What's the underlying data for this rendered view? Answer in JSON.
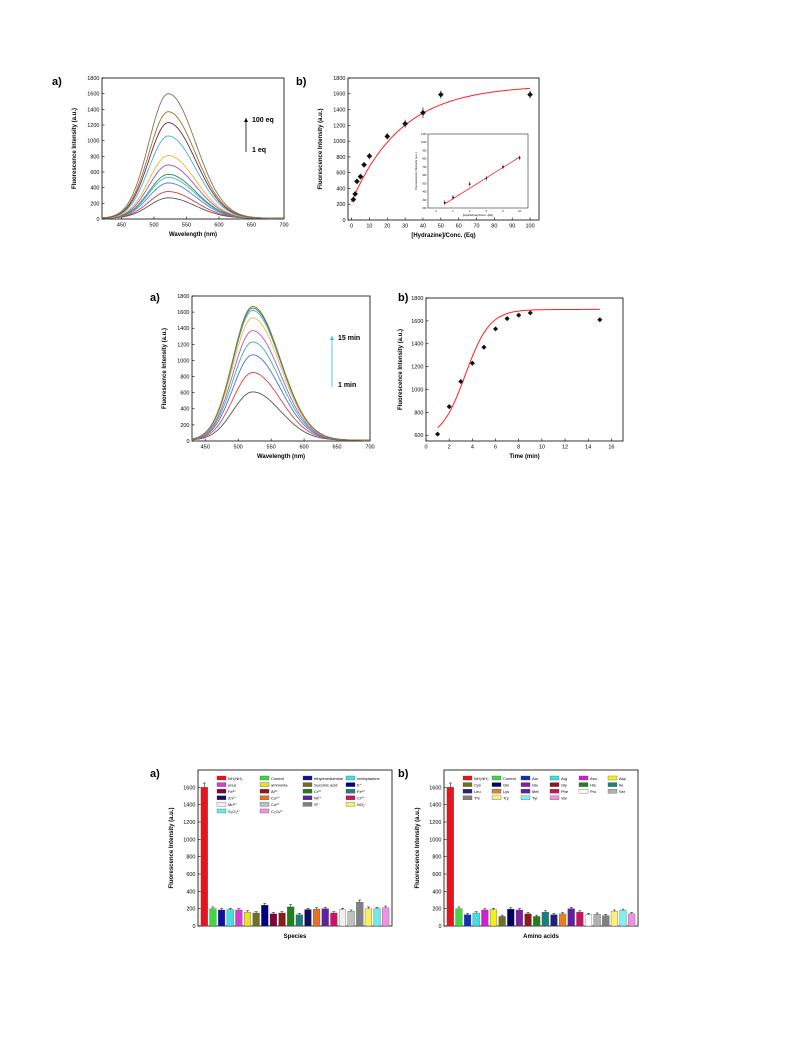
{
  "panels": {
    "fig1a": {
      "letter": "a)",
      "chart_data": {
        "type": "line",
        "xlabel": "Wavelength (nm)",
        "ylabel": "Fluorescence Intensity (a.u.)",
        "xlim": [
          420,
          700
        ],
        "ylim": [
          0,
          1800
        ],
        "xticks": [
          450,
          500,
          550,
          600,
          650,
          700
        ],
        "yticks": [
          0,
          200,
          400,
          600,
          800,
          1000,
          1200,
          1400,
          1600,
          1800
        ],
        "peak_x": 522,
        "series_peaks": [
          270,
          350,
          460,
          530,
          570,
          690,
          810,
          1060,
          1230,
          1370,
          1600
        ],
        "series_colors": [
          "#555555",
          "#d23b3b",
          "#5a7bd8",
          "#3fb8c8",
          "#2e8b57",
          "#a050c0",
          "#e8b830",
          "#40b0e0",
          "#7a1f4f",
          "#8b7a20",
          "#8a6d5a"
        ],
        "annotation_top": "100 eq",
        "annotation_bottom": "1 eq"
      }
    },
    "fig1b": {
      "letter": "b)",
      "chart_data": {
        "type": "scatter",
        "xlabel": "[Hydrazine]/Conc. (Eq)",
        "ylabel": "Fluorescence Intensity (a.u.)",
        "xlim": [
          -2,
          105
        ],
        "ylim": [
          0,
          1800
        ],
        "xticks": [
          0,
          10,
          20,
          30,
          40,
          50,
          60,
          70,
          80,
          90,
          100
        ],
        "yticks": [
          0,
          200,
          400,
          600,
          800,
          1000,
          1200,
          1400,
          1600,
          1800
        ],
        "x": [
          1,
          2,
          3,
          5,
          7,
          10,
          20,
          30,
          40,
          50,
          100
        ],
        "y": [
          260,
          330,
          490,
          550,
          700,
          810,
          1060,
          1220,
          1360,
          1590,
          1590
        ],
        "err": [
          20,
          25,
          30,
          30,
          35,
          40,
          40,
          50,
          70,
          50,
          50
        ],
        "fit_color": "#ff2020",
        "inset": {
          "xlabel": "[Hydrazine]/Conc. (Eq)",
          "ylabel": "Fluorescence Intensity (a.u.)",
          "xlim": [
            -1,
            11
          ],
          "ylim": [
            200,
            1100
          ],
          "xticks": [
            0,
            2,
            4,
            6,
            8,
            10
          ],
          "yticks": [
            200,
            300,
            400,
            500,
            600,
            700,
            800,
            900,
            1000,
            1100
          ],
          "x": [
            1,
            2,
            4,
            6,
            8,
            10
          ],
          "y": [
            265,
            330,
            490,
            560,
            700,
            810
          ]
        }
      }
    },
    "fig2a": {
      "letter": "a)",
      "chart_data": {
        "type": "line",
        "xlabel": "Wavelength (nm)",
        "ylabel": "Fluorescence Intensity (a.u.)",
        "xlim": [
          430,
          700
        ],
        "ylim": [
          0,
          1800
        ],
        "xticks": [
          450,
          500,
          550,
          600,
          650,
          700
        ],
        "yticks": [
          0,
          200,
          400,
          600,
          800,
          1000,
          1200,
          1400,
          1600,
          1800
        ],
        "peak_x": 522,
        "series_peaks": [
          610,
          850,
          1070,
          1230,
          1370,
          1530,
          1620,
          1650,
          1670
        ],
        "series_colors": [
          "#555555",
          "#e04040",
          "#4a6fd8",
          "#30b8a0",
          "#c050d0",
          "#e8c040",
          "#50a0e0",
          "#2e8b57",
          "#8b7a20"
        ],
        "annotation_top": "15 min",
        "annotation_bottom": "1 min"
      }
    },
    "fig2b": {
      "letter": "b)",
      "chart_data": {
        "type": "scatter",
        "xlabel": "Time (min)",
        "ylabel": "Fluorescence Intensity (a.u.)",
        "xlim": [
          0,
          17
        ],
        "ylim": [
          550,
          1800
        ],
        "xticks": [
          0,
          2,
          4,
          6,
          8,
          10,
          12,
          14,
          16
        ],
        "yticks": [
          600,
          800,
          1000,
          1200,
          1400,
          1600,
          1800
        ],
        "x": [
          1,
          2,
          3,
          4,
          5,
          6,
          7,
          8,
          9,
          15
        ],
        "y": [
          610,
          850,
          1070,
          1230,
          1370,
          1530,
          1620,
          1650,
          1670,
          1610
        ],
        "fit_color": "#ff2020"
      }
    },
    "fig3a": {
      "letter": "a)",
      "chart_data": {
        "type": "bar",
        "xlabel": "Species",
        "ylabel": "Fluorescence Intensity (a.u.)",
        "ylim": [
          0,
          1800
        ],
        "yticks": [
          0,
          200,
          400,
          600,
          800,
          1000,
          1200,
          1400,
          1600
        ],
        "categories": [
          "NH₂NH₂",
          "Control",
          "ethylenediamine",
          "methylamine",
          "urea",
          "ammonia",
          "Succinic acid",
          "K⁺",
          "Fe³⁺",
          "Al³⁺",
          "Cr³⁺",
          "Fe²⁺",
          "Zn²⁺",
          "Co²⁺",
          "Ni²⁺",
          "Cr⁶⁺",
          "Mn²⁺",
          "Cu²⁺",
          "S²⁻",
          "NO₂⁻",
          "S₂O₃²⁻",
          "C₂O₄²⁻"
        ],
        "values": [
          1600,
          200,
          185,
          190,
          185,
          160,
          150,
          240,
          140,
          150,
          220,
          130,
          190,
          195,
          200,
          150,
          190,
          170,
          275,
          200,
          200,
          210
        ],
        "errors": [
          50,
          20,
          15,
          15,
          15,
          15,
          15,
          20,
          15,
          15,
          25,
          15,
          15,
          15,
          15,
          15,
          15,
          15,
          25,
          20,
          15,
          20
        ],
        "colors": [
          "#e8141c",
          "#40d840",
          "#1010a0",
          "#40e0e0",
          "#d040d0",
          "#e8e030",
          "#707020",
          "#000080",
          "#800040",
          "#8b1a1a",
          "#208020",
          "#1a7f7f",
          "#10105f",
          "#e87020",
          "#6020a0",
          "#d01060",
          "#f0f0f0",
          "#c0c0c0",
          "#808080",
          "#f8f060",
          "#70e8e8",
          "#f090e8"
        ],
        "legend": [
          "NH₂NH₂",
          "Control",
          "ethylenediamine",
          "methylamine",
          "urea",
          "ammonia",
          "Succinic acid",
          "K⁺",
          "Fe³⁺",
          "Al³⁺",
          "Cr³⁺",
          "Fe²⁺",
          "Zn²⁺",
          "Co²⁺",
          "Ni²⁺",
          "Cr⁶⁺",
          "Mn²⁺",
          "Cu²⁺",
          "S²⁻",
          "NO₂⁻",
          "S₂O₃²⁻",
          "C₂O₄²⁻"
        ]
      }
    },
    "fig3b": {
      "letter": "b)",
      "chart_data": {
        "type": "bar",
        "xlabel": "Amino acids",
        "ylabel": "Fluorescence Intensity (a.u.)",
        "ylim": [
          0,
          1800
        ],
        "yticks": [
          0,
          200,
          400,
          600,
          800,
          1000,
          1200,
          1400,
          1600
        ],
        "categories": [
          "NH₂NH₂",
          "Control",
          "Ala",
          "Arg",
          "Asn",
          "Asp",
          "Cys",
          "Gln",
          "Glu",
          "Gly",
          "His",
          "Ile",
          "Leu",
          "Lys",
          "Met",
          "Phe",
          "Pro",
          "Ser",
          "Thr",
          "Trp",
          "Tyr",
          "Val"
        ],
        "values": [
          1600,
          200,
          130,
          150,
          185,
          190,
          110,
          195,
          185,
          140,
          110,
          160,
          130,
          140,
          200,
          160,
          130,
          135,
          120,
          170,
          180,
          140
        ],
        "errors": [
          50,
          20,
          15,
          15,
          15,
          15,
          15,
          15,
          15,
          15,
          15,
          15,
          15,
          15,
          15,
          15,
          15,
          15,
          15,
          15,
          15,
          15
        ],
        "colors": [
          "#e8141c",
          "#40d840",
          "#1030c0",
          "#40e0e0",
          "#d020d0",
          "#f0f020",
          "#707020",
          "#000060",
          "#8020a0",
          "#8b1a1a",
          "#208020",
          "#1a7f7f",
          "#202080",
          "#e88020",
          "#6020a0",
          "#d01060",
          "#ffffff",
          "#b0b0b0",
          "#808080",
          "#f8f080",
          "#80f0f0",
          "#f090e0"
        ],
        "legend": [
          "NH₂NH₂",
          "Control",
          "Ala",
          "Arg",
          "Asn",
          "Asp",
          "Cys",
          "Gln",
          "Glu",
          "Gly",
          "His",
          "Ile",
          "Leu",
          "Lys",
          "Met",
          "Phe",
          "Pro",
          "Ser",
          "Thr",
          "Trp",
          "Tyr",
          "Val"
        ]
      }
    }
  }
}
